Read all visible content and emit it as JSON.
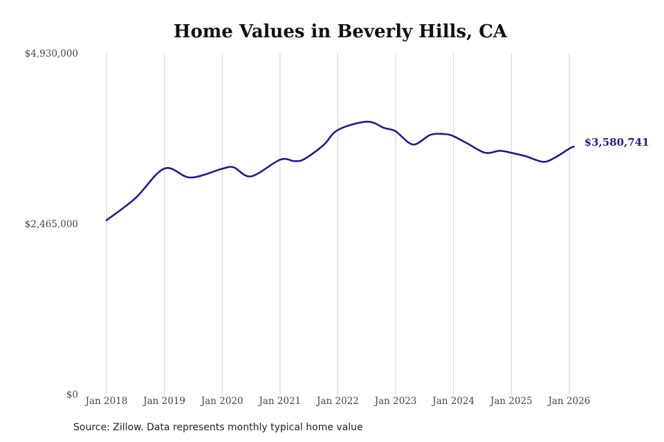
{
  "chart_data": {
    "type": "line",
    "title": "Home Values in Beverly Hills, CA",
    "xlabel": "",
    "ylabel": "",
    "ylim": [
      0,
      4930000
    ],
    "xlim": [
      2018,
      2026
    ],
    "y_ticks": [
      {
        "value": 0,
        "label": "$0"
      },
      {
        "value": 2465000,
        "label": "$2,465,000"
      },
      {
        "value": 4930000,
        "label": "$4,930,000"
      }
    ],
    "x_ticks": [
      {
        "value": 2018,
        "label": "Jan 2018"
      },
      {
        "value": 2019,
        "label": "Jan 2019"
      },
      {
        "value": 2020,
        "label": "Jan 2020"
      },
      {
        "value": 2021,
        "label": "Jan 2021"
      },
      {
        "value": 2022,
        "label": "Jan 2022"
      },
      {
        "value": 2023,
        "label": "Jan 2023"
      },
      {
        "value": 2024,
        "label": "Jan 2024"
      },
      {
        "value": 2025,
        "label": "Jan 2025"
      },
      {
        "value": 2026,
        "label": "Jan 2026"
      }
    ],
    "grid": "vertical",
    "series": [
      {
        "name": "Typical home value",
        "color": "#1f1a8a",
        "x": [
          2018.0,
          2018.5,
          2019.0,
          2019.45,
          2020.0,
          2020.2,
          2020.5,
          2021.0,
          2021.25,
          2021.42,
          2021.75,
          2022.0,
          2022.5,
          2022.8,
          2023.0,
          2023.3,
          2023.6,
          2023.85,
          2024.0,
          2024.25,
          2024.55,
          2024.8,
          2025.0,
          2025.25,
          2025.55,
          2025.75,
          2026.0,
          2026.08
        ],
        "values": [
          2515000,
          2835000,
          3263000,
          3133000,
          3260000,
          3280000,
          3150000,
          3390000,
          3370000,
          3400000,
          3600000,
          3820000,
          3940000,
          3850000,
          3800000,
          3610000,
          3750000,
          3760000,
          3730000,
          3620000,
          3490000,
          3520000,
          3490000,
          3440000,
          3360000,
          3420000,
          3550000,
          3580741
        ]
      }
    ],
    "end_label": "$3,580,741"
  },
  "source": "Source: Zillow. Data represents monthly typical home value"
}
